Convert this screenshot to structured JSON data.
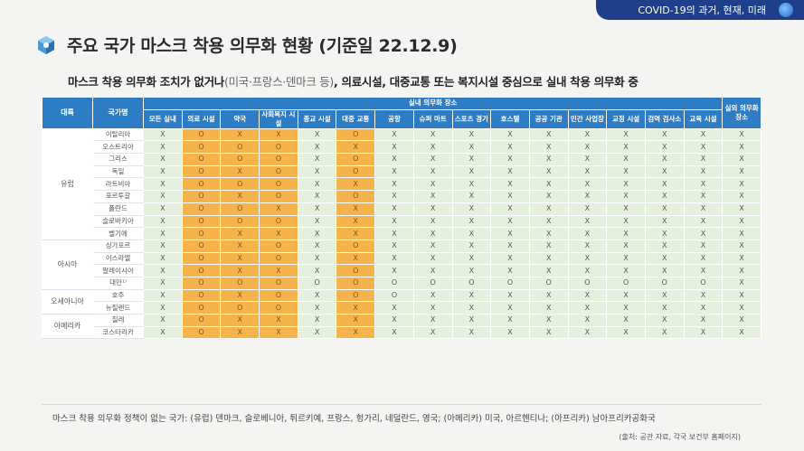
{
  "banner": {
    "text": "COVID-19의 과거, 현재, 미래"
  },
  "title": "주요 국가 마스크 착용 의무화 현황 (기준일 22.12.9)",
  "subtitle": {
    "part1": "마스크 착용 의무화 조치가 없거나",
    "part2": "(미국·프랑스·덴마크 등)",
    "part3": ", 의료시설, 대중교통 또는 복지시설 중심으로 실내 착용 의무화 중"
  },
  "table": {
    "head_continent": "대륙",
    "head_country": "국가명",
    "head_group": "실내 의무화 장소",
    "head_outdoor": "실외 의무화 장소",
    "columns": [
      "모든 실내",
      "의료 시설",
      "약국",
      "사회복지 시설",
      "종교 시설",
      "대중 교통",
      "공항",
      "슈퍼 마트",
      "스포츠 경기",
      "호스텔",
      "공공 기관",
      "민간 사업장",
      "교정 시설",
      "검역 검사소",
      "교육 시설"
    ],
    "groups": [
      {
        "continent": "유럽",
        "rows": [
          {
            "name": "이탈리아",
            "v": [
              "X",
              "O",
              "X",
              "X",
              "X",
              "O",
              "X",
              "X",
              "X",
              "X",
              "X",
              "X",
              "X",
              "X",
              "X",
              "X"
            ]
          },
          {
            "name": "오스트리아",
            "v": [
              "X",
              "O",
              "O",
              "O",
              "X",
              "X",
              "X",
              "X",
              "X",
              "X",
              "X",
              "X",
              "X",
              "X",
              "X",
              "X"
            ]
          },
          {
            "name": "그리스",
            "v": [
              "X",
              "O",
              "O",
              "O",
              "X",
              "O",
              "X",
              "X",
              "X",
              "X",
              "X",
              "X",
              "X",
              "X",
              "X",
              "X"
            ]
          },
          {
            "name": "독일",
            "v": [
              "X",
              "O",
              "X",
              "O",
              "X",
              "O",
              "X",
              "X",
              "X",
              "X",
              "X",
              "X",
              "X",
              "X",
              "X",
              "X"
            ]
          },
          {
            "name": "라트비아",
            "v": [
              "X",
              "O",
              "O",
              "O",
              "X",
              "X",
              "X",
              "X",
              "X",
              "X",
              "X",
              "X",
              "X",
              "X",
              "X",
              "X"
            ]
          },
          {
            "name": "포르투갈",
            "v": [
              "X",
              "O",
              "X",
              "O",
              "X",
              "O",
              "X",
              "X",
              "X",
              "X",
              "X",
              "X",
              "X",
              "X",
              "X",
              "X"
            ]
          },
          {
            "name": "폴란드",
            "v": [
              "X",
              "O",
              "O",
              "X",
              "X",
              "X",
              "X",
              "X",
              "X",
              "X",
              "X",
              "X",
              "X",
              "X",
              "X",
              "X"
            ]
          },
          {
            "name": "슬로바키아",
            "v": [
              "X",
              "O",
              "O",
              "O",
              "X",
              "X",
              "X",
              "X",
              "X",
              "X",
              "X",
              "X",
              "X",
              "X",
              "X",
              "X"
            ]
          },
          {
            "name": "벨기에",
            "v": [
              "X",
              "O",
              "X",
              "X",
              "X",
              "X",
              "X",
              "X",
              "X",
              "X",
              "X",
              "X",
              "X",
              "X",
              "X",
              "X"
            ]
          }
        ]
      },
      {
        "continent": "아시아",
        "rows": [
          {
            "name": "싱가포르",
            "v": [
              "X",
              "O",
              "X",
              "O",
              "X",
              "O",
              "X",
              "X",
              "X",
              "X",
              "X",
              "X",
              "X",
              "X",
              "X",
              "X"
            ]
          },
          {
            "name": "이스라엘",
            "v": [
              "X",
              "O",
              "X",
              "O",
              "X",
              "X",
              "X",
              "X",
              "X",
              "X",
              "X",
              "X",
              "X",
              "X",
              "X",
              "X"
            ]
          },
          {
            "name": "말레이시아",
            "v": [
              "X",
              "O",
              "X",
              "X",
              "X",
              "O",
              "X",
              "X",
              "X",
              "X",
              "X",
              "X",
              "X",
              "X",
              "X",
              "X"
            ]
          },
          {
            "name": "대만¹⁾",
            "v": [
              "X",
              "O",
              "O",
              "O",
              "O",
              "O",
              "O",
              "O",
              "O",
              "O",
              "O",
              "O",
              "O",
              "O",
              "O",
              "X"
            ]
          }
        ]
      },
      {
        "continent": "오세아니아",
        "rows": [
          {
            "name": "호주",
            "v": [
              "X",
              "O",
              "X",
              "O",
              "X",
              "O",
              "O",
              "X",
              "X",
              "X",
              "X",
              "X",
              "X",
              "X",
              "X",
              "X"
            ]
          },
          {
            "name": "뉴질랜드",
            "v": [
              "X",
              "O",
              "O",
              "O",
              "X",
              "X",
              "X",
              "X",
              "X",
              "X",
              "X",
              "X",
              "X",
              "X",
              "X",
              "X"
            ]
          }
        ]
      },
      {
        "continent": "아메리카",
        "rows": [
          {
            "name": "칠레",
            "v": [
              "X",
              "O",
              "X",
              "X",
              "X",
              "X",
              "X",
              "X",
              "X",
              "X",
              "X",
              "X",
              "X",
              "X",
              "X",
              "X"
            ]
          },
          {
            "name": "코스타리카",
            "v": [
              "X",
              "O",
              "X",
              "X",
              "X",
              "X",
              "X",
              "X",
              "X",
              "X",
              "X",
              "X",
              "X",
              "X",
              "X",
              "X"
            ]
          }
        ]
      }
    ]
  },
  "footnote": "마스크 착용 의무화 정책이 없는 국가: (유럽) 덴마크, 슬로베니아, 튀르키예, 프랑스, 헝가리, 네덜란드, 영국; (아메리카) 미국, 아르헨티나; (아프리카) 남아프리카공화국",
  "source": "(출처: 공관 자료, 각국 보건부 홈페이지)",
  "colors": {
    "header": "#2e7dc4",
    "highlight": "#f6b34c",
    "cell": "#e6f0df",
    "banner": "#1f3f8a"
  }
}
